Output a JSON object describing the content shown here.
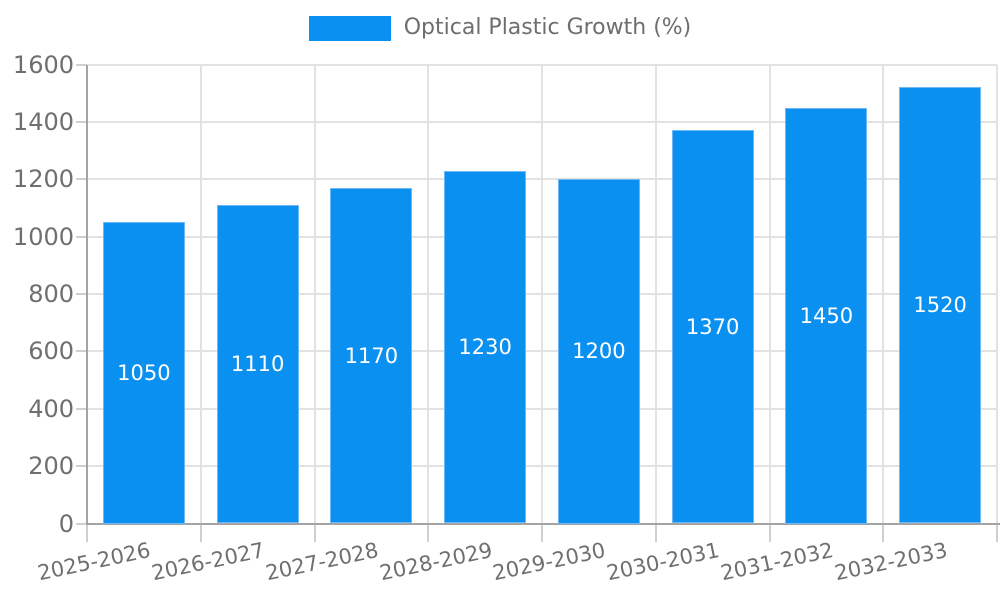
{
  "legend": {
    "label": "Optical Plastic Growth (%)"
  },
  "chart_data": {
    "type": "bar",
    "title": "Optical Plastic Growth (%)",
    "categories": [
      "2025-2026",
      "2026-2027",
      "2027-2028",
      "2028-2029",
      "2029-2030",
      "2030-2031",
      "2031-2032",
      "2032-2033"
    ],
    "values": [
      1050,
      1110,
      1170,
      1230,
      1200,
      1370,
      1450,
      1520
    ],
    "xlabel": "",
    "ylabel": "",
    "ylim": [
      0,
      1600
    ],
    "ytick_step": 200,
    "ytick_labels": [
      "0",
      "200",
      "400",
      "600",
      "800",
      "1000",
      "1200",
      "1400",
      "1600"
    ],
    "grid": true,
    "legend_position": "top-center",
    "value_labels": "inside-center"
  },
  "colors": {
    "bar": "#0a90f0",
    "bar_edge": "#6db8f5",
    "grid": "#e2e2e2",
    "axis": "#a4a4a4",
    "tick": "#cfcfcf",
    "axis_text": "#6f6f6f",
    "legend_text": "#6e6e6e",
    "value_text": "#ffffff",
    "background": "#ffffff"
  }
}
